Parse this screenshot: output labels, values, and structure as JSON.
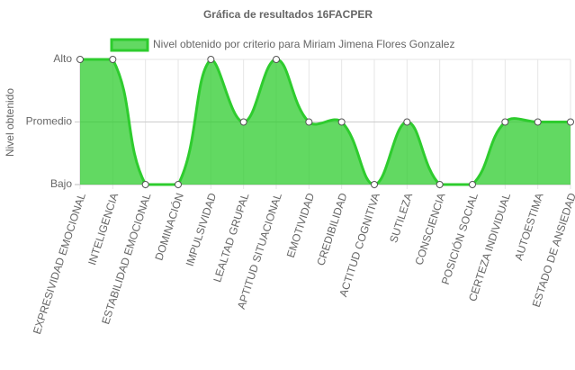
{
  "chart_data": {
    "type": "line",
    "title": "Gráfica de resultados 16FACPER",
    "y_label": "Nivel obtenido",
    "categories": [
      "EXPRESIVIDAD EMOCIONAL",
      "INTELIGENCIA",
      "ESTABILIDAD EMOCIONAL",
      "DOMINACIÓN",
      "IMPULSIVIDAD",
      "LEALTAD GRUPAL",
      "APTITUD SITUACIONAL",
      "EMOTIVIDAD",
      "CREDIBILIDAD",
      "ACTITUD COGNITIVA",
      "SUTILEZA",
      "CONSCIENCIA",
      "POSICIÓN SOCIAL",
      "CERTEZA INDIVIDUAL",
      "AUTOESTIMA",
      "ESTADO DE ANSIEDAD"
    ],
    "series": [
      {
        "name": "Nivel obtenido por criterio para Miriam Jimena Flores Gonzalez",
        "color": "#2ecc2e",
        "values": [
          2,
          2,
          0,
          0,
          2,
          1,
          2,
          1,
          1,
          0,
          1,
          0,
          0,
          1,
          1,
          1
        ]
      }
    ],
    "ylim": [
      0,
      2
    ],
    "yticks": [
      {
        "value": 0,
        "label": "Bajo"
      },
      {
        "value": 1,
        "label": "Promedio"
      },
      {
        "value": 2,
        "label": "Alto"
      }
    ],
    "grid": true,
    "fill": true
  }
}
